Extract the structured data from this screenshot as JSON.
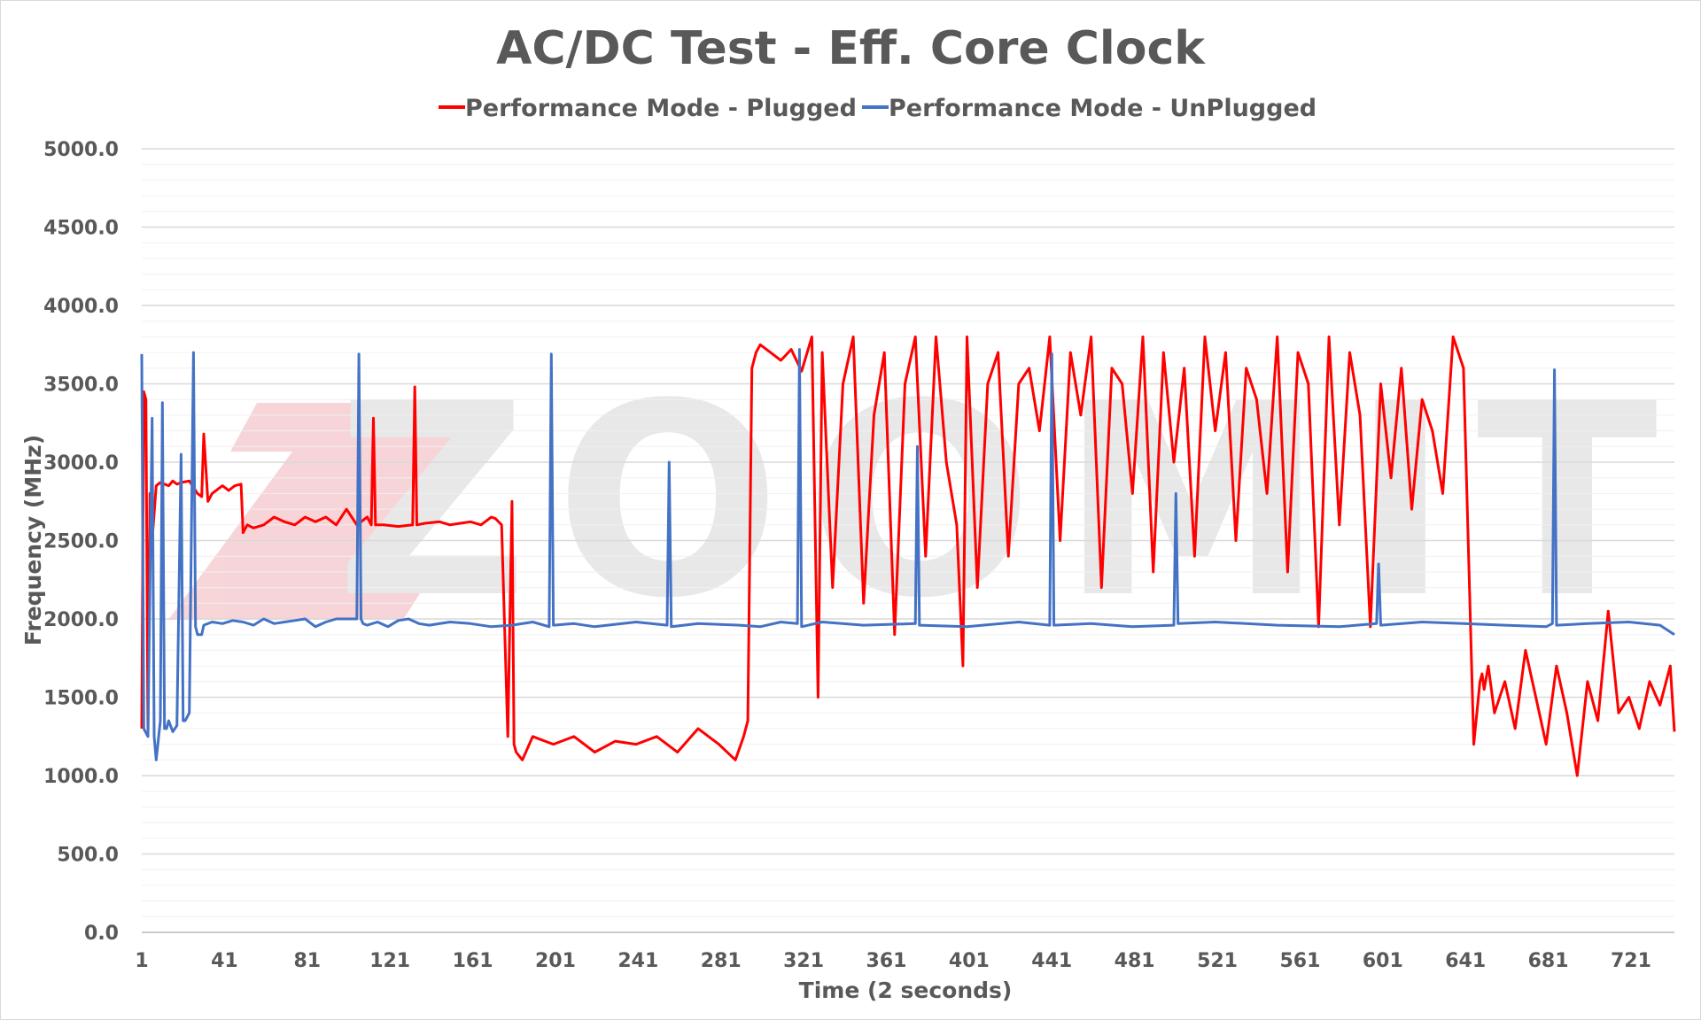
{
  "chart_data": {
    "type": "line",
    "title": "AC/DC Test - Eff. Core Clock",
    "xlabel": "Time (2 seconds)",
    "ylabel": "Frequency (MHz)",
    "ylim": [
      0,
      5000
    ],
    "xlim": [
      1,
      742
    ],
    "y_ticks": [
      "0.0",
      "500.0",
      "1000.0",
      "1500.0",
      "2000.0",
      "2500.0",
      "3000.0",
      "3500.0",
      "4000.0",
      "4500.0",
      "5000.0"
    ],
    "x_ticks": [
      "1",
      "41",
      "81",
      "121",
      "161",
      "201",
      "241",
      "281",
      "321",
      "361",
      "401",
      "441",
      "481",
      "521",
      "561",
      "601",
      "641",
      "681",
      "721"
    ],
    "grid": true,
    "legend_position": "top",
    "watermark": "ZOOMIT",
    "series": [
      {
        "name": "Performance Mode - Plugged",
        "color": "#ff0000",
        "x": [
          1,
          2,
          3,
          4,
          5,
          6,
          8,
          10,
          12,
          14,
          16,
          18,
          20,
          24,
          28,
          30,
          31,
          33,
          35,
          38,
          40,
          43,
          46,
          49,
          50,
          52,
          55,
          60,
          65,
          70,
          75,
          80,
          85,
          90,
          95,
          100,
          105,
          110,
          112,
          113,
          114,
          118,
          125,
          132,
          133,
          134,
          138,
          145,
          150,
          155,
          160,
          165,
          170,
          172,
          175,
          178,
          180,
          181,
          182,
          185,
          190,
          200,
          210,
          220,
          230,
          240,
          250,
          260,
          270,
          280,
          288,
          292,
          294,
          296,
          298,
          300,
          305,
          310,
          315,
          320,
          325,
          328,
          330,
          335,
          340,
          345,
          350,
          355,
          360,
          365,
          370,
          375,
          380,
          385,
          390,
          395,
          398,
          400,
          405,
          410,
          415,
          420,
          425,
          430,
          435,
          440,
          445,
          450,
          455,
          460,
          465,
          470,
          475,
          480,
          485,
          490,
          495,
          500,
          505,
          510,
          515,
          520,
          525,
          530,
          535,
          540,
          545,
          550,
          555,
          560,
          565,
          570,
          575,
          580,
          585,
          590,
          595,
          600,
          605,
          610,
          615,
          620,
          625,
          630,
          635,
          640,
          645,
          648,
          649,
          650,
          652,
          655,
          660,
          665,
          670,
          675,
          680,
          685,
          690,
          695,
          700,
          705,
          710,
          715,
          720,
          725,
          730,
          735,
          740,
          742
        ],
        "y": [
          1300,
          3450,
          3400,
          1300,
          2800,
          2500,
          2850,
          2870,
          2860,
          2850,
          2880,
          2860,
          2870,
          2880,
          2800,
          2780,
          3180,
          2750,
          2800,
          2830,
          2850,
          2820,
          2850,
          2860,
          2550,
          2600,
          2580,
          2600,
          2650,
          2620,
          2600,
          2650,
          2620,
          2650,
          2600,
          2700,
          2600,
          2650,
          2600,
          3280,
          2600,
          2600,
          2590,
          2600,
          3480,
          2600,
          2610,
          2620,
          2600,
          2610,
          2620,
          2600,
          2650,
          2640,
          2600,
          1250,
          2750,
          1200,
          1150,
          1100,
          1250,
          1200,
          1250,
          1150,
          1220,
          1200,
          1250,
          1150,
          1300,
          1200,
          1100,
          1250,
          1350,
          3600,
          3700,
          3750,
          3700,
          3650,
          3720,
          3580,
          3800,
          1500,
          3700,
          2200,
          3500,
          3800,
          2100,
          3300,
          3700,
          1900,
          3500,
          3800,
          2400,
          3800,
          3000,
          2600,
          1700,
          3800,
          2200,
          3500,
          3700,
          2400,
          3500,
          3600,
          3200,
          3800,
          2500,
          3700,
          3300,
          3800,
          2200,
          3600,
          3500,
          2800,
          3800,
          2300,
          3700,
          3000,
          3600,
          2400,
          3800,
          3200,
          3700,
          2500,
          3600,
          3400,
          2800,
          3800,
          2300,
          3700,
          3500,
          1950,
          3800,
          2600,
          3700,
          3300,
          1950,
          3500,
          2900,
          3600,
          2700,
          3400,
          3200,
          2800,
          3800,
          3600,
          1200,
          1600,
          1650,
          1550,
          1700,
          1400,
          1600,
          1300,
          1800,
          1500,
          1200,
          1700,
          1400,
          1000,
          1600,
          1350,
          2050,
          1400,
          1500,
          1300,
          1600,
          1450,
          1700,
          1280
        ]
      },
      {
        "name": "Performance Mode - UnPlugged",
        "color": "#4472c4",
        "x": [
          1,
          2,
          4,
          6,
          7,
          8,
          10,
          11,
          12,
          13,
          14,
          16,
          18,
          20,
          21,
          22,
          24,
          26,
          27,
          28,
          30,
          31,
          35,
          40,
          45,
          50,
          55,
          60,
          65,
          70,
          75,
          80,
          85,
          90,
          95,
          100,
          105,
          106,
          107,
          108,
          110,
          115,
          120,
          125,
          130,
          135,
          140,
          150,
          160,
          170,
          180,
          190,
          198,
          199,
          200,
          210,
          220,
          240,
          255,
          256,
          257,
          270,
          290,
          300,
          310,
          318,
          319,
          320,
          330,
          350,
          375,
          376,
          377,
          400,
          425,
          440,
          441,
          442,
          460,
          480,
          500,
          501,
          502,
          520,
          550,
          580,
          598,
          599,
          600,
          620,
          640,
          660,
          680,
          683,
          684,
          685,
          700,
          720,
          735,
          742
        ],
        "y": [
          3690,
          1300,
          1250,
          3280,
          1250,
          1100,
          1350,
          3380,
          1300,
          1300,
          1350,
          1280,
          1320,
          3050,
          1350,
          1350,
          1400,
          3700,
          1950,
          1900,
          1900,
          1960,
          1980,
          1970,
          1990,
          1980,
          1960,
          2000,
          1970,
          1980,
          1990,
          2000,
          1950,
          1980,
          2000,
          2000,
          2000,
          3690,
          2000,
          1970,
          1960,
          1980,
          1950,
          1990,
          2000,
          1970,
          1960,
          1980,
          1970,
          1950,
          1960,
          1980,
          1950,
          3690,
          1960,
          1970,
          1950,
          1980,
          1960,
          3000,
          1950,
          1970,
          1960,
          1950,
          1980,
          1970,
          3720,
          1950,
          1980,
          1960,
          1970,
          3100,
          1960,
          1950,
          1980,
          1960,
          3690,
          1960,
          1970,
          1950,
          1960,
          2800,
          1970,
          1980,
          1960,
          1950,
          1970,
          2350,
          1960,
          1980,
          1970,
          1960,
          1950,
          1970,
          3590,
          1960,
          1970,
          1980,
          1960,
          1900
        ]
      }
    ]
  }
}
